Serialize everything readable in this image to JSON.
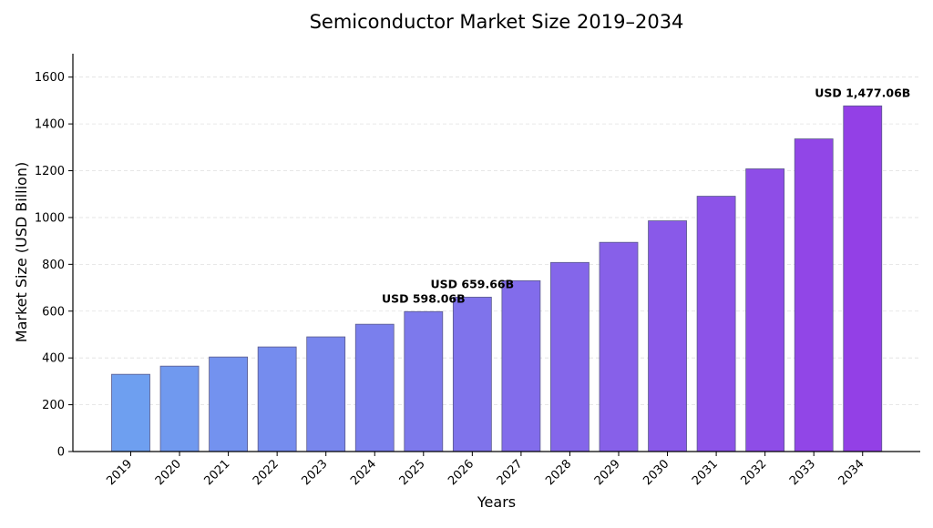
{
  "chart_data": {
    "type": "bar",
    "title": "Semiconductor Market Size 2019–2034",
    "xlabel": "Years",
    "ylabel": "Market Size (USD Billion)",
    "ylim": [
      0,
      1700
    ],
    "yticks": [
      0,
      200,
      400,
      600,
      800,
      1000,
      1200,
      1400,
      1600
    ],
    "grid": true,
    "categories": [
      "2019",
      "2020",
      "2021",
      "2022",
      "2023",
      "2024",
      "2025",
      "2026",
      "2027",
      "2028",
      "2029",
      "2030",
      "2031",
      "2032",
      "2033",
      "2034"
    ],
    "values": [
      330,
      365,
      404,
      447,
      490,
      544,
      598.06,
      659.66,
      730,
      808,
      894,
      986,
      1091,
      1208,
      1336,
      1477.06
    ],
    "annotations": [
      {
        "category": "2025",
        "text": "USD 598.06B"
      },
      {
        "category": "2026",
        "text": "USD 659.66B"
      },
      {
        "category": "2034",
        "text": "USD 1,477.06B"
      }
    ],
    "colors": {
      "gradient_start": "#6e9ff0",
      "gradient_end": "#9340e6",
      "bar_edge": "#5a5a8a",
      "grid": "#e0e0e0",
      "axis": "#000000"
    }
  }
}
